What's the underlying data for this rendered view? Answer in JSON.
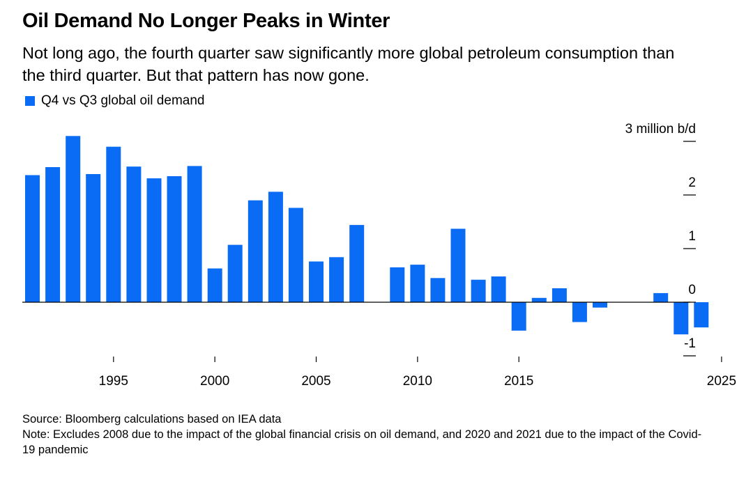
{
  "header": {
    "title": "Oil Demand No Longer Peaks in Winter",
    "subtitle": "Not long ago, the fourth quarter saw significantly more global petroleum consumption than the third quarter. But that pattern has now gone."
  },
  "legend": {
    "label": "Q4 vs Q3 global oil demand",
    "color": "#0a6cf5"
  },
  "footer": {
    "source": "Source: Bloomberg calculations based on IEA data",
    "note": "Note: Excludes 2008 due to the impact of the global financial crisis on oil demand, and 2020 and 2021 due to the impact of the Covid-19 pandemic"
  },
  "chart_data": {
    "type": "bar",
    "categories": [
      "1991",
      "1992",
      "1993",
      "1994",
      "1995",
      "1996",
      "1997",
      "1998",
      "1999",
      "2000",
      "2001",
      "2002",
      "2003",
      "2004",
      "2005",
      "2006",
      "2007",
      "2009",
      "2010",
      "2011",
      "2012",
      "2013",
      "2014",
      "2015",
      "2016",
      "2017",
      "2018",
      "2019",
      "2022",
      "2023",
      "2024"
    ],
    "values": [
      2.37,
      2.52,
      3.1,
      2.39,
      2.9,
      2.53,
      2.31,
      2.35,
      2.54,
      0.63,
      1.07,
      1.9,
      2.06,
      1.76,
      0.76,
      0.84,
      1.44,
      0.65,
      0.7,
      0.45,
      1.37,
      0.42,
      0.48,
      -0.53,
      0.08,
      0.26,
      -0.37,
      -0.1,
      0.17,
      -0.6,
      -0.47
    ],
    "bar_color": "#0a6cf5",
    "x_axis": {
      "tick_years": [
        1995,
        2000,
        2005,
        2010,
        2015,
        2025
      ],
      "tick_labels": [
        "1995",
        "2000",
        "2005",
        "2010",
        "2015",
        "2025"
      ],
      "gaps": [
        "2008",
        "2020",
        "2021"
      ]
    },
    "y_axis": {
      "ticks": [
        3,
        2,
        1,
        0,
        -1
      ],
      "tick_labels": [
        "3 million b/d",
        "2",
        "1",
        "0",
        "-1"
      ],
      "position": "right",
      "ylim": [
        -1,
        3
      ]
    },
    "grid": false,
    "legend_position": "top-left"
  }
}
